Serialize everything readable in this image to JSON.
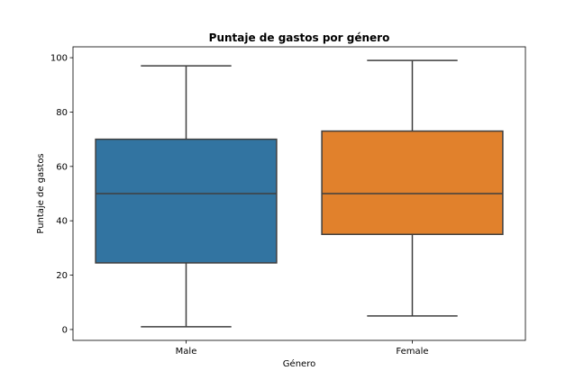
{
  "chart_data": {
    "type": "box",
    "title": "Puntaje de gastos por género",
    "xlabel": "Género",
    "ylabel": "Puntaje de gastos",
    "ylim": [
      -4,
      104
    ],
    "yticks": [
      0,
      20,
      40,
      60,
      80,
      100
    ],
    "grid": false,
    "categories": [
      "Male",
      "Female"
    ],
    "boxes": [
      {
        "category": "Male",
        "min": 1,
        "q1": 24.5,
        "median": 50,
        "q3": 70,
        "max": 97,
        "color": "#3274a1"
      },
      {
        "category": "Female",
        "min": 5,
        "q1": 35,
        "median": 50,
        "q3": 73,
        "max": 99,
        "color": "#e1812c"
      }
    ]
  }
}
